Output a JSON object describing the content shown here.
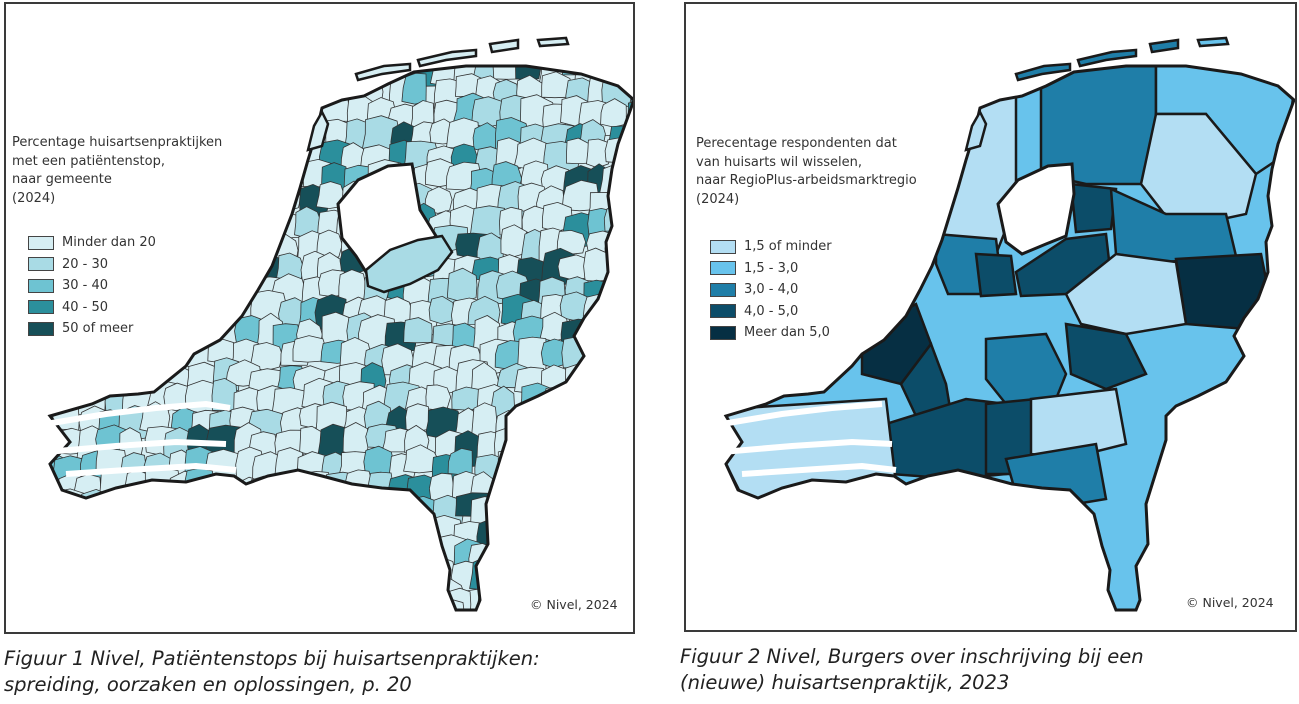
{
  "figure1": {
    "legend_title": "Percentage huisartsenpraktijken\nmet een patiëntenstop,\nnaar gemeente\n(2024)",
    "legend": [
      {
        "label": "Minder dan 20",
        "color": "#d6eef3"
      },
      {
        "label": "20 - 30",
        "color": "#a9dbe5"
      },
      {
        "label": "30 - 40",
        "color": "#6ec3d2"
      },
      {
        "label": "40 - 50",
        "color": "#2b8f9c"
      },
      {
        "label": "50 of meer",
        "color": "#164f58"
      }
    ],
    "copyright": "© Nivel, 2024",
    "caption": "Figuur 1 Nivel, Patiëntenstops bij huisartsenpraktijken:\nspreiding, oorzaken en oplossingen, p. 20"
  },
  "figure2": {
    "legend_title": "Perecentage respondenten dat\nvan huisarts wil wisselen,\nnaar RegioPlus-arbeidsmarktregio\n(2024)",
    "legend": [
      {
        "label": "1,5 of minder",
        "color": "#b3def3"
      },
      {
        "label": "1,5 - 3,0",
        "color": "#68c3ec"
      },
      {
        "label": "3,0 - 4,0",
        "color": "#1f7ea8"
      },
      {
        "label": "4,0 - 5,0",
        "color": "#0c4d69"
      },
      {
        "label": "Meer dan 5,0",
        "color": "#062f43"
      }
    ],
    "copyright": "© Nivel, 2024",
    "caption": "Figuur 2 Nivel, Burgers over inschrijving bij een\n(nieuwe) huisartsenpraktijk, 2023"
  }
}
